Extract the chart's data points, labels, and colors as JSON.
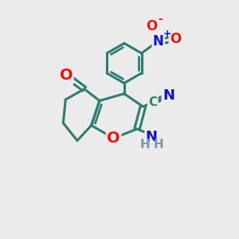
{
  "background_color": "#ebebeb",
  "bond_color": "#2d7d6f",
  "bond_width": 2.2,
  "atom_colors": {
    "O": "#ee1111",
    "N": "#1111cc",
    "C": "#2d7d6f",
    "H": "#7799aa"
  }
}
